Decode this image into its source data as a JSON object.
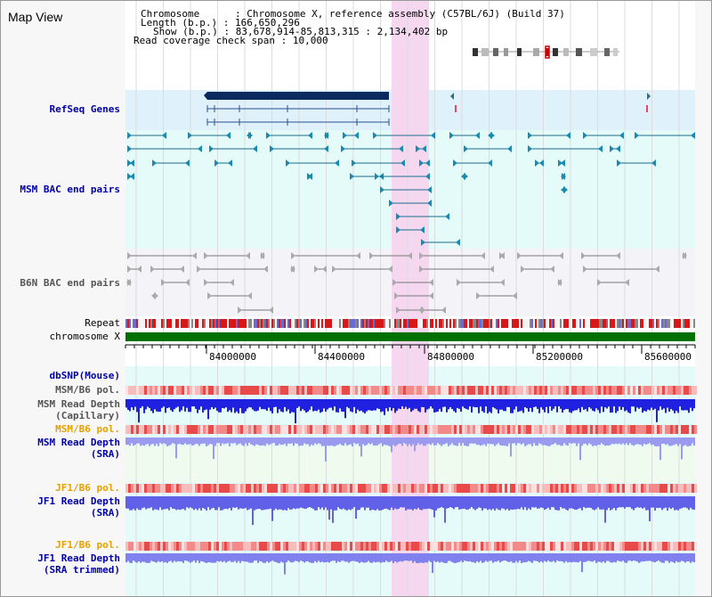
{
  "title": "Map View",
  "info": {
    "chromosome_key": "Chromosome",
    "chromosome_value": "Chromosome X, reference assembly (C57BL/6J) (Build 37)",
    "length_key": "Length (b.p.)",
    "length_value": "166,650,296",
    "show_key": "Show (b.p.)",
    "show_value": "83,678,914-85,813,315 : 2,134,402 bp",
    "coverage_key": "Read coverage check span",
    "coverage_value": "10,000"
  },
  "tracks": {
    "refseq": "RefSeq Genes",
    "msm_bac": "MSM BAC end pairs",
    "b6n_bac": "B6N BAC end pairs",
    "repeat": "Repeat",
    "chromosome": "chromosome X",
    "dbsnp": "dbSNP(Mouse)",
    "msm_b6_pol": "MSM/B6 pol.",
    "msm_depth_cap_1": "MSM Read Depth",
    "msm_depth_cap_2": "(Capillary)",
    "msm_b6_pol2": "MSM/B6 pol.",
    "msm_depth_sra_1": "MSM Read Depth",
    "msm_depth_sra_2": "(SRA)",
    "jf1_b6_pol": "JF1/B6 pol.",
    "jf1_depth_sra_1": "JF1 Read Depth",
    "jf1_depth_sra_2": "(SRA)",
    "jf1_b6_pol2": "JF1/B6 pol.",
    "jf1_depth_trim_1": "JF1 Read Depth",
    "jf1_depth_trim_2": "(SRA trimmed)"
  },
  "axis": {
    "ticks": [
      "84000000",
      "84400000",
      "84800000",
      "85200000",
      "85600000"
    ]
  },
  "colors": {
    "label_blue": "#0000aa",
    "label_gray": "#555555",
    "label_orange": "#e8a000",
    "highlight": "#f5d8f0",
    "refseq_bg": "#dff1fb",
    "msm_bg": "#e4fbf9",
    "b6n_bg": "#f3f3f8",
    "green_bg": "#eefbee"
  }
}
